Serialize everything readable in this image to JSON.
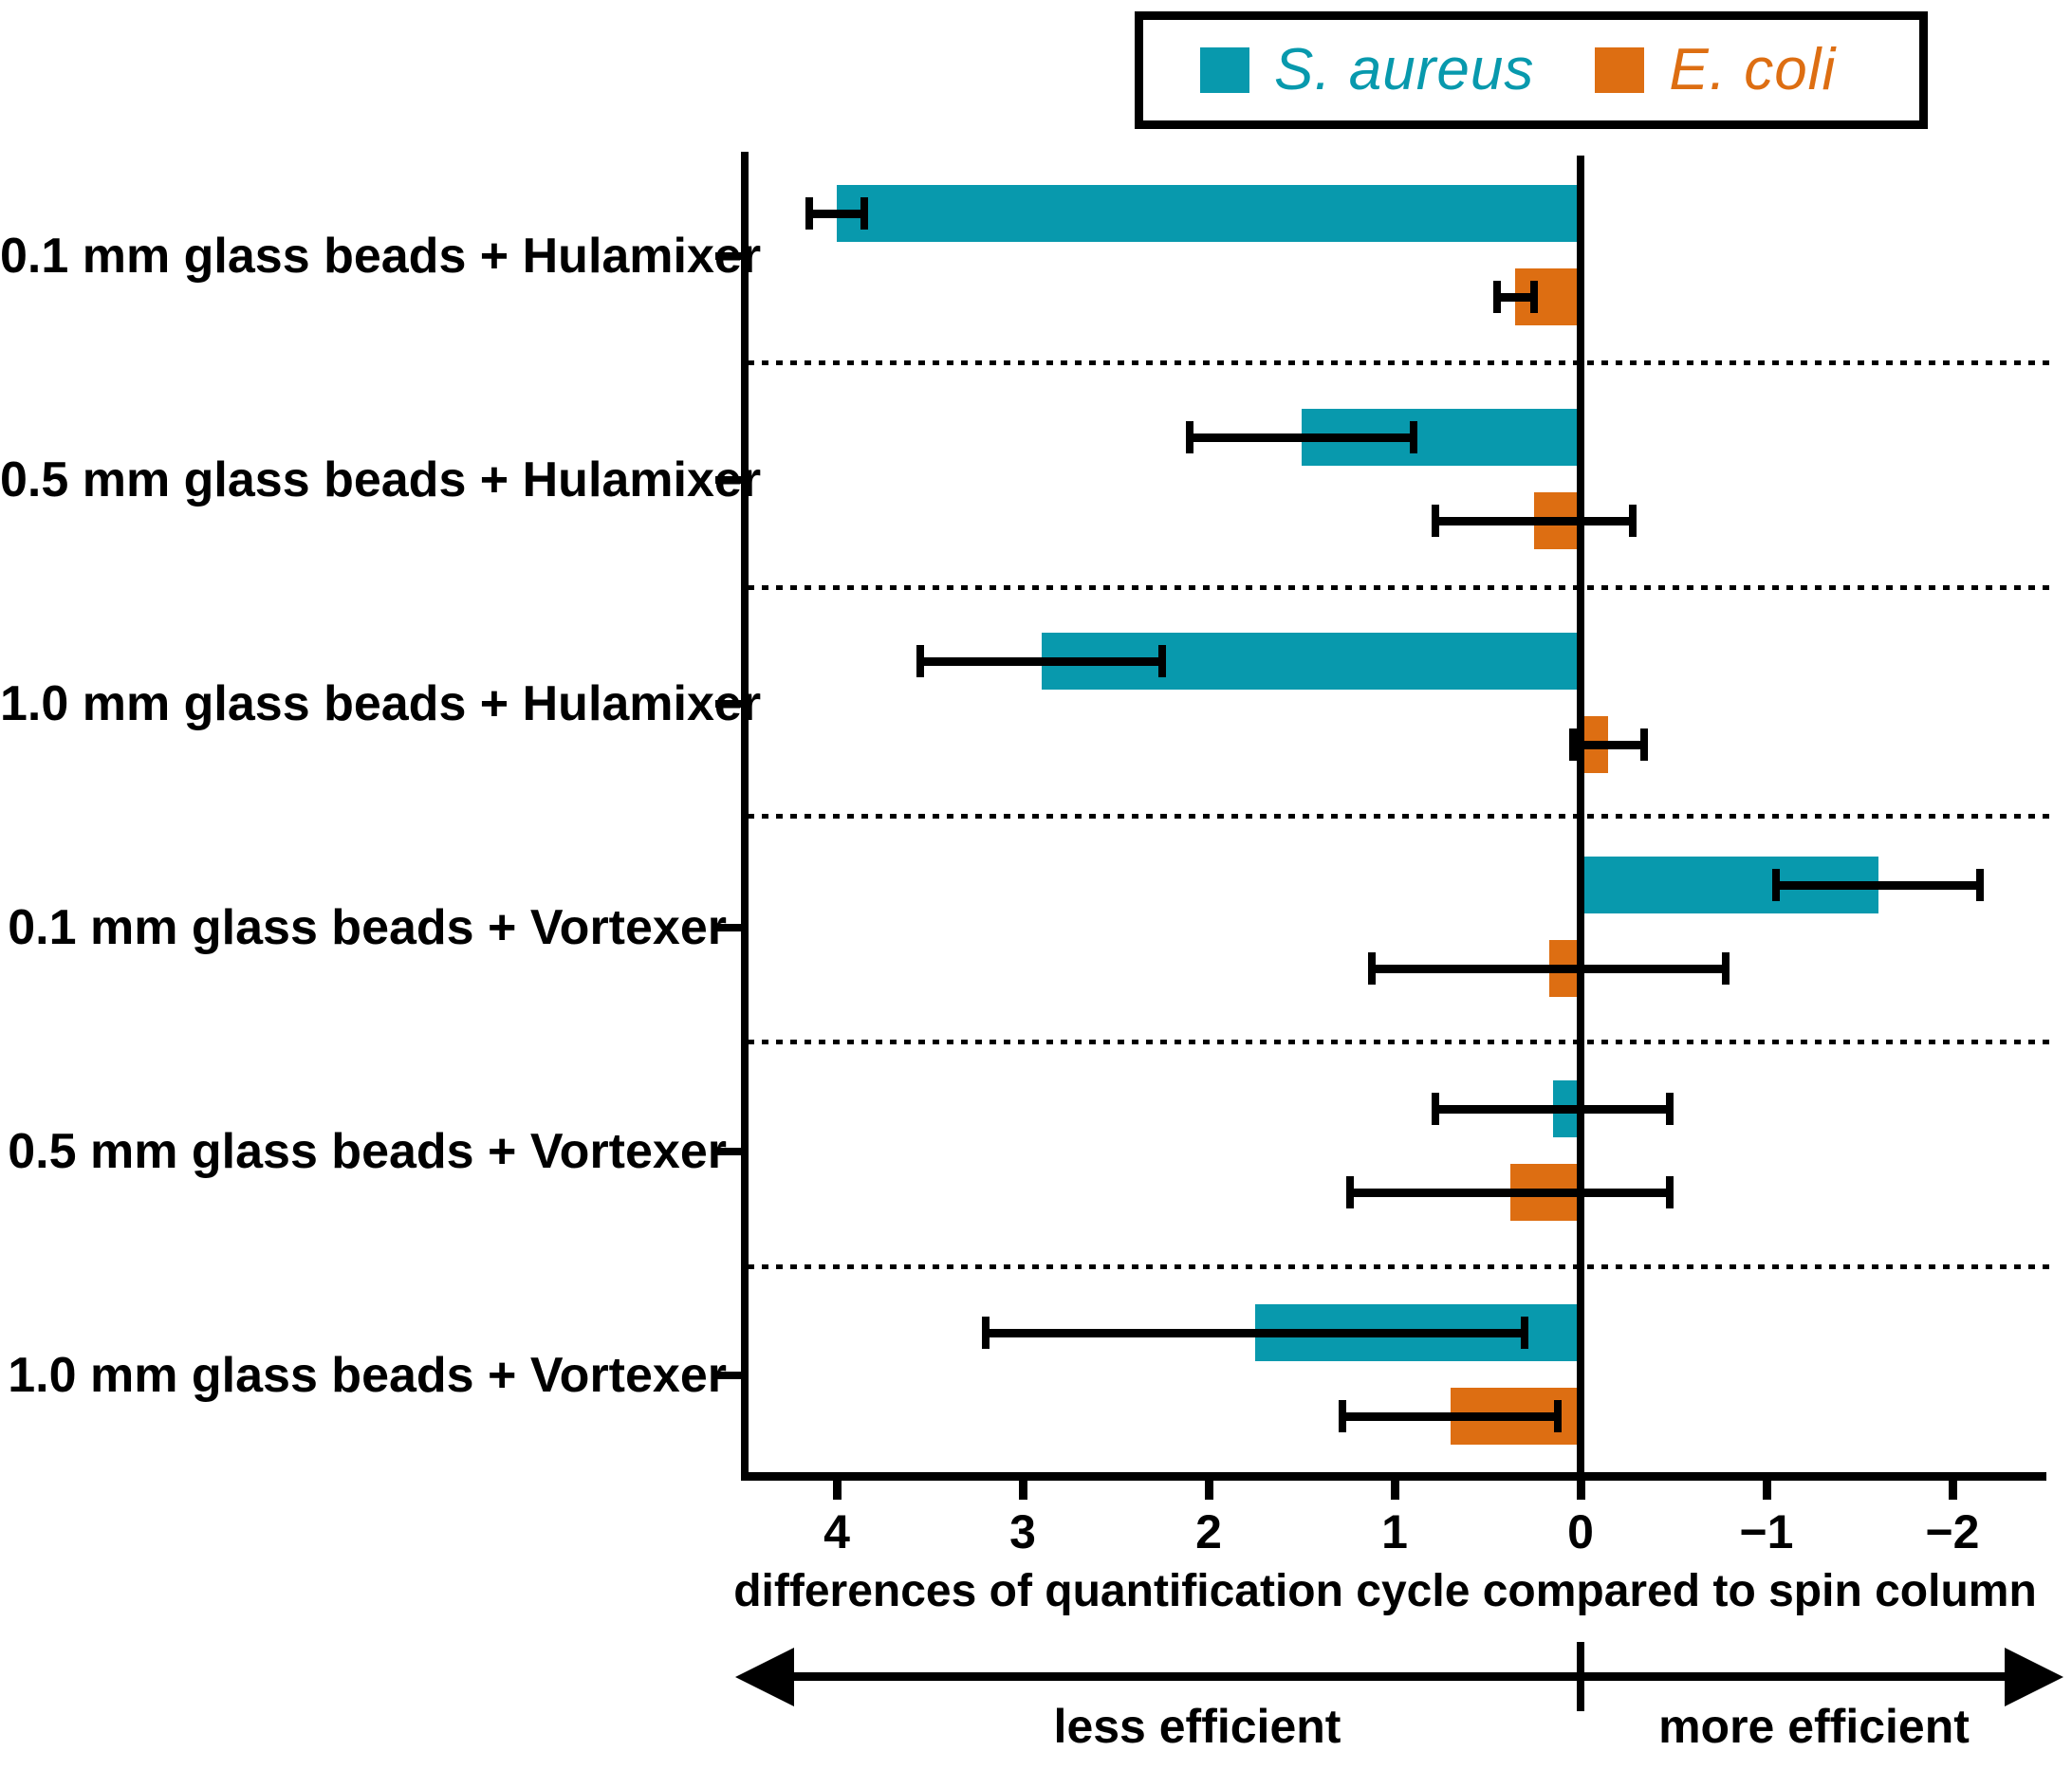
{
  "legend": {
    "position": "top-right"
  },
  "chart_data": {
    "type": "bar",
    "orientation": "horizontal",
    "categories": [
      "0.1 mm glass beads + Hulamixer",
      "0.5 mm glass beads + Hulamixer",
      "1.0 mm glass beads + Hulamixer",
      "0.1 mm glass beads + Vortexer",
      "0.5 mm glass beads + Vortexer",
      "1.0 mm glass beads + Vortexer"
    ],
    "x_axis": {
      "label": "differences of quantification cycle compared to spin column",
      "tick_labels": [
        "4",
        "3",
        "2",
        "1",
        "0",
        "−1",
        "−2"
      ],
      "tick_values": [
        4,
        3,
        2,
        1,
        0,
        -1,
        -2
      ],
      "range": [
        4.5,
        -2.6
      ],
      "reversed": true,
      "zero_line": true
    },
    "series": [
      {
        "name": "S. aureus",
        "color": "#0899ad",
        "values": [
          4.0,
          1.5,
          2.9,
          -1.6,
          0.15,
          1.75
        ],
        "errors": [
          0.15,
          0.6,
          0.65,
          0.55,
          0.63,
          1.45
        ]
      },
      {
        "name": "E. coli",
        "color": "#dd6e12",
        "values": [
          0.35,
          0.25,
          -0.15,
          0.17,
          0.38,
          0.7
        ],
        "errors": [
          0.1,
          0.53,
          0.19,
          0.95,
          0.86,
          0.58
        ]
      }
    ],
    "group_separators": "dashed",
    "direction_annotations": {
      "left": "less efficient",
      "right": "more efficient"
    }
  }
}
